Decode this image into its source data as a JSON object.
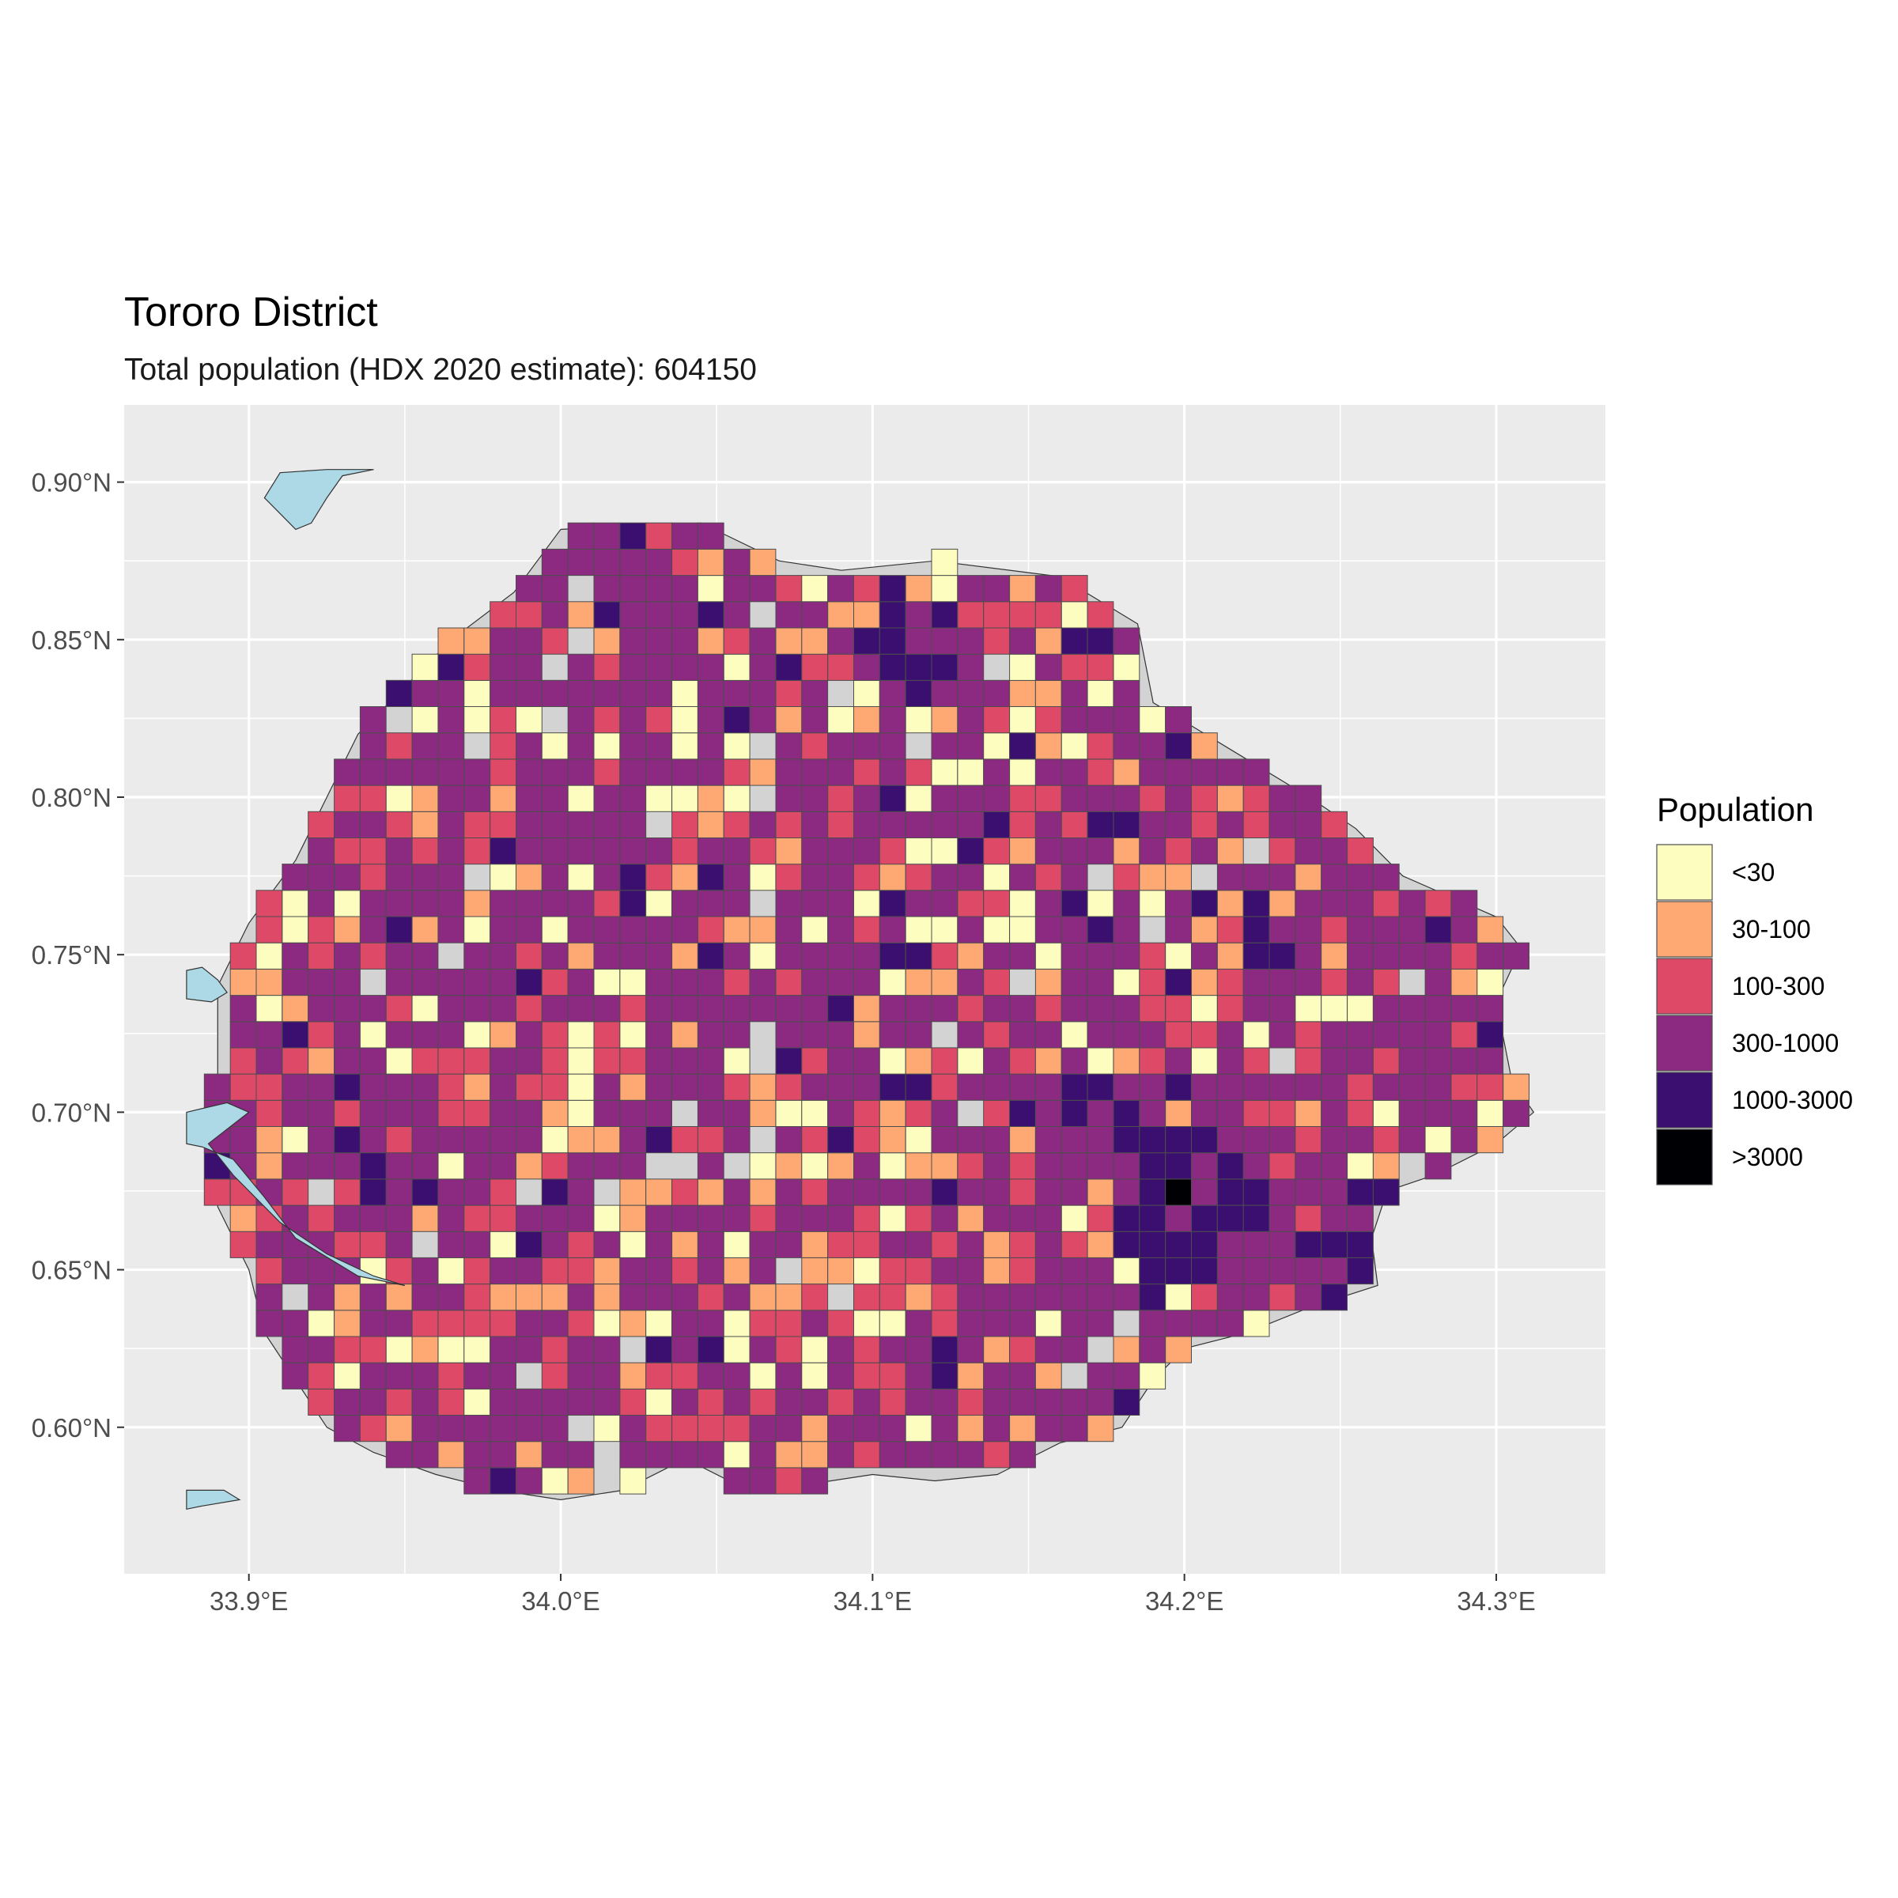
{
  "title": "Tororo District",
  "subtitle": "Total population (HDX 2020 estimate): 604150",
  "legend": {
    "title": "Population",
    "items": [
      {
        "label": "<30",
        "color": "#fcfdbf"
      },
      {
        "label": "30-100",
        "color": "#fea873"
      },
      {
        "label": "100-300",
        "color": "#de4968"
      },
      {
        "label": "300-1000",
        "color": "#8c2981"
      },
      {
        "label": "1000-3000",
        "color": "#3b0f70"
      },
      {
        "label": ">3000",
        "color": "#000004"
      }
    ]
  },
  "colors": {
    "panel_background": "#ebebeb",
    "grid": "#ffffff",
    "district_background": "#d3d3d3",
    "water": "#add8e6",
    "cell_border": "#4d4d4d"
  },
  "map_data": {
    "type": "choropleth-grid",
    "x_axis": {
      "ticks": [
        33.9,
        34.0,
        34.1,
        34.2,
        34.3
      ],
      "tick_labels": [
        "33.9°E",
        "34.0°E",
        "34.1°E",
        "34.2°E",
        "34.3°E"
      ],
      "range": [
        33.86,
        34.335
      ]
    },
    "y_axis": {
      "ticks": [
        0.6,
        0.65,
        0.7,
        0.75,
        0.8,
        0.85,
        0.9
      ],
      "tick_labels": [
        "0.60°N",
        "0.65°N",
        "0.70°N",
        "0.75°N",
        "0.80°N",
        "0.85°N",
        "0.90°N"
      ],
      "range": [
        0.5535,
        0.9245
      ]
    },
    "cell_size_deg": 0.00833,
    "grid_origin": {
      "lon": 33.8857,
      "lat": 0.5705
    },
    "district_outline": [
      [
        34.0,
        0.885
      ],
      [
        34.045,
        0.887
      ],
      [
        34.07,
        0.875
      ],
      [
        34.09,
        0.872
      ],
      [
        34.12,
        0.875
      ],
      [
        34.16,
        0.87
      ],
      [
        34.185,
        0.855
      ],
      [
        34.19,
        0.83
      ],
      [
        34.215,
        0.815
      ],
      [
        34.24,
        0.8
      ],
      [
        34.255,
        0.79
      ],
      [
        34.27,
        0.775
      ],
      [
        34.3,
        0.762
      ],
      [
        34.308,
        0.752
      ],
      [
        34.3,
        0.735
      ],
      [
        34.305,
        0.71
      ],
      [
        34.312,
        0.7
      ],
      [
        34.3,
        0.69
      ],
      [
        34.28,
        0.68
      ],
      [
        34.265,
        0.675
      ],
      [
        34.26,
        0.66
      ],
      [
        34.262,
        0.645
      ],
      [
        34.24,
        0.638
      ],
      [
        34.22,
        0.63
      ],
      [
        34.2,
        0.625
      ],
      [
        34.19,
        0.615
      ],
      [
        34.18,
        0.6
      ],
      [
        34.16,
        0.595
      ],
      [
        34.14,
        0.585
      ],
      [
        34.12,
        0.583
      ],
      [
        34.1,
        0.585
      ],
      [
        34.08,
        0.582
      ],
      [
        34.06,
        0.58
      ],
      [
        34.04,
        0.59
      ],
      [
        34.02,
        0.58
      ],
      [
        34.0,
        0.577
      ],
      [
        33.98,
        0.58
      ],
      [
        33.96,
        0.585
      ],
      [
        33.94,
        0.592
      ],
      [
        33.925,
        0.6
      ],
      [
        33.915,
        0.615
      ],
      [
        33.905,
        0.63
      ],
      [
        33.9,
        0.65
      ],
      [
        33.89,
        0.67
      ],
      [
        33.887,
        0.69
      ],
      [
        33.89,
        0.71
      ],
      [
        33.89,
        0.74
      ],
      [
        33.9,
        0.76
      ],
      [
        33.915,
        0.78
      ],
      [
        33.925,
        0.8
      ],
      [
        33.935,
        0.82
      ],
      [
        33.95,
        0.835
      ],
      [
        33.965,
        0.85
      ],
      [
        33.985,
        0.865
      ],
      [
        34.0,
        0.885
      ]
    ],
    "water_bodies": [
      [
        [
          33.91,
          0.903
        ],
        [
          33.925,
          0.904
        ],
        [
          33.94,
          0.904
        ],
        [
          33.93,
          0.902
        ],
        [
          33.925,
          0.895
        ],
        [
          33.92,
          0.887
        ],
        [
          33.915,
          0.885
        ],
        [
          33.91,
          0.89
        ],
        [
          33.905,
          0.895
        ]
      ],
      [
        [
          33.88,
          0.745
        ],
        [
          33.885,
          0.746
        ],
        [
          33.89,
          0.742
        ],
        [
          33.893,
          0.738
        ],
        [
          33.888,
          0.735
        ],
        [
          33.88,
          0.736
        ]
      ],
      [
        [
          33.88,
          0.7
        ],
        [
          33.893,
          0.703
        ],
        [
          33.9,
          0.7
        ],
        [
          33.887,
          0.69
        ],
        [
          33.895,
          0.68
        ],
        [
          33.91,
          0.665
        ],
        [
          33.925,
          0.655
        ],
        [
          33.94,
          0.648
        ],
        [
          33.95,
          0.645
        ],
        [
          33.935,
          0.648
        ],
        [
          33.915,
          0.66
        ],
        [
          33.905,
          0.673
        ],
        [
          33.895,
          0.685
        ],
        [
          33.885,
          0.689
        ],
        [
          33.88,
          0.69
        ]
      ],
      [
        [
          33.88,
          0.58
        ],
        [
          33.892,
          0.58
        ],
        [
          33.897,
          0.577
        ],
        [
          33.885,
          0.575
        ],
        [
          33.88,
          0.574
        ]
      ]
    ]
  }
}
